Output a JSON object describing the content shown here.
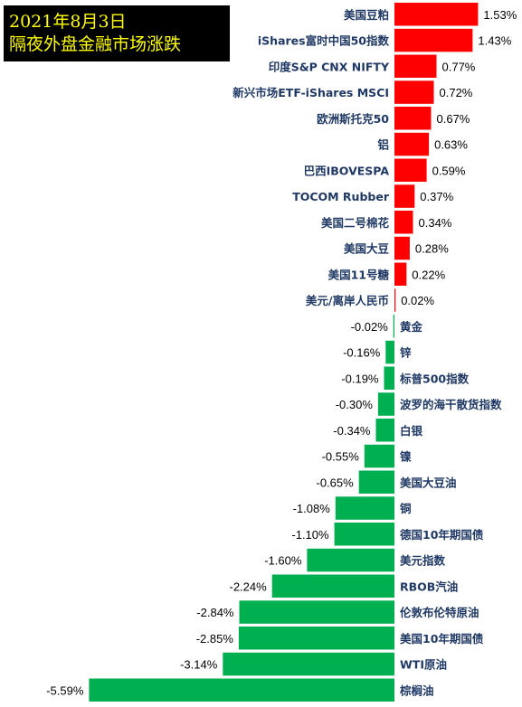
{
  "title": {
    "line1": "2021年8月3日",
    "line2": "隔夜外盘金融市场涨跌"
  },
  "chart_data": {
    "type": "bar",
    "orientation": "horizontal",
    "categories": [
      "美国豆粕",
      "iShares富时中国50指数",
      "印度S&P CNX NIFTY",
      "新兴市场ETF-iShares MSCI",
      "欧洲斯托克50",
      "铝",
      "巴西IBOVESPA",
      "TOCOM Rubber",
      "美国二号棉花",
      "美国大豆",
      "美国11号糖",
      "美元/离岸人民币",
      "黄金",
      "锌",
      "标普500指数",
      "波罗的海干散货指数",
      "白银",
      "镍",
      "美国大豆油",
      "铜",
      "德国10年期国债",
      "美元指数",
      "RBOB汽油",
      "伦敦布伦特原油",
      "美国10年期国债",
      "WTI原油",
      "棕榈油"
    ],
    "values": [
      1.53,
      1.43,
      0.77,
      0.72,
      0.67,
      0.63,
      0.59,
      0.37,
      0.34,
      0.28,
      0.22,
      0.02,
      -0.02,
      -0.16,
      -0.19,
      -0.3,
      -0.34,
      -0.55,
      -0.65,
      -1.08,
      -1.1,
      -1.6,
      -2.24,
      -2.84,
      -2.85,
      -3.14,
      -5.59
    ],
    "value_labels": [
      "1.53%",
      "1.43%",
      "0.77%",
      "0.72%",
      "0.67%",
      "0.63%",
      "0.59%",
      "0.37%",
      "0.34%",
      "0.28%",
      "0.22%",
      "0.02%",
      "-0.02%",
      "-0.16%",
      "-0.19%",
      "-0.30%",
      "-0.34%",
      "-0.55%",
      "-0.65%",
      "-1.08%",
      "-1.10%",
      "-1.60%",
      "-2.24%",
      "-2.84%",
      "-2.85%",
      "-3.14%",
      "-5.59%"
    ],
    "colors": {
      "positive": "#ff0000",
      "negative": "#00b050",
      "category_text": "#1f3864",
      "value_text": "#000000"
    },
    "grid": false,
    "legend": "none"
  }
}
